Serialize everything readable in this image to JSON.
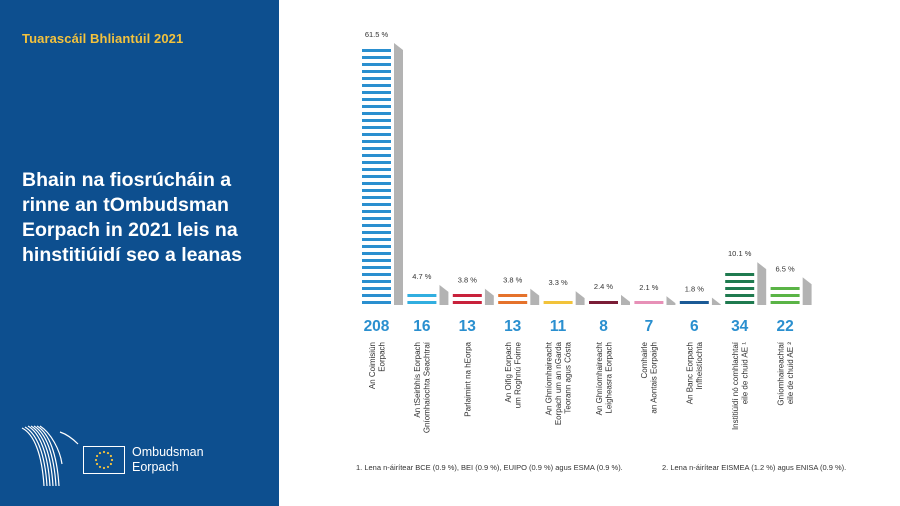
{
  "header": {
    "report_label": "Tuarascáil Bhliantúil 2021"
  },
  "headline": "Bhain na fiosrúcháin a rinne an tOmbudsman Eorpach in 2021 leis na hinstitiúidí seo a leanas",
  "logo": {
    "line1": "Ombudsman",
    "line2": "Eorpach"
  },
  "colors": {
    "panel": "#0d4f8f",
    "accent_text": "#f3c23d",
    "value_text": "#2a8fcf",
    "shadow": "#b3b3b3"
  },
  "chart_data": {
    "type": "bar",
    "title": "",
    "xlabel": "",
    "ylabel": "",
    "grid": false,
    "categories": [
      [
        "An Coimisiún",
        "Eorpach"
      ],
      [
        "An tSeirbhís Eorpach",
        "Gníomhaíochta Seachtraí"
      ],
      [
        "Parlaimint na hEorpa"
      ],
      [
        "An Oifig Eorpach",
        "um Roghnú Foirne"
      ],
      [
        "An Ghníomhaireacht",
        "Eorpach um an nGarda",
        "Teorann agus Cósta"
      ],
      [
        "An Ghníomhaireacht",
        "Leigheasra Eorpach"
      ],
      [
        "Comhairle",
        "an Aontais Eorpaigh"
      ],
      [
        "An Banc Eorpach",
        "Infheistíochta"
      ],
      [
        "Institiúidí nó comhlachtaí",
        "eile de chuid AE ¹"
      ],
      [
        "Gníomhaireachtaí",
        "eile de chuid AE ²"
      ]
    ],
    "values": [
      208,
      16,
      13,
      13,
      11,
      8,
      7,
      6,
      34,
      22
    ],
    "percent_labels": [
      "61.5 %",
      "4.7 %",
      "3.8 %",
      "3.8 %",
      "3.3 %",
      "2.4 %",
      "2.1 %",
      "1.8 %",
      "10.1 %",
      "6.5 %"
    ],
    "bar_colors": [
      "#2a8fcf",
      "#31aee0",
      "#c8213b",
      "#e5722b",
      "#f2c33a",
      "#7a1d36",
      "#e790b7",
      "#1b5a96",
      "#1f7a4f",
      "#5ab446"
    ]
  },
  "footnotes": [
    "1.   Lena n-áirítear BCE (0.9 %), BEI (0.9 %), EUIPO (0.9 %) agus ESMA (0.9 %).",
    "2.   Lena n-áirítear EISMEA (1.2 %) agus ENISA (0.9 %)."
  ]
}
